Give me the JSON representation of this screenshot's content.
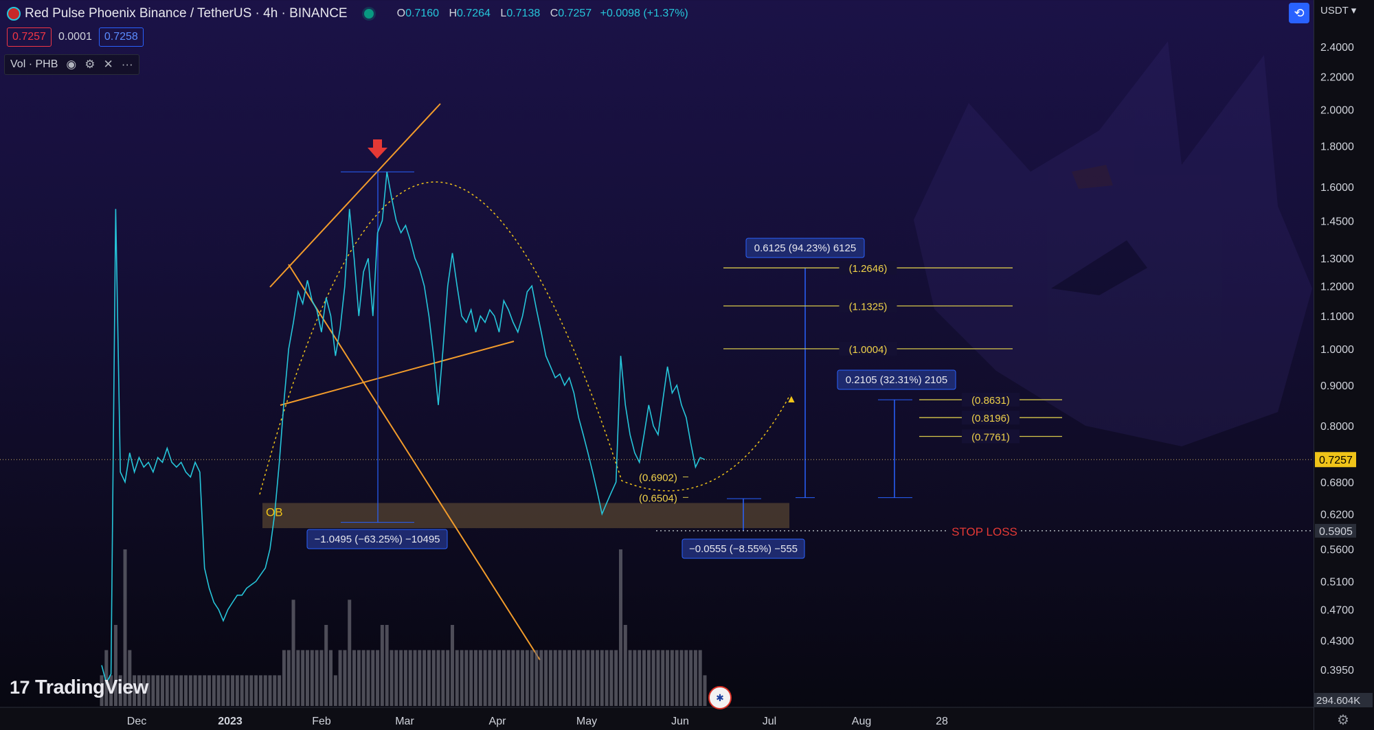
{
  "header": {
    "symbol_title": "Red Pulse Phoenix Binance / TetherUS · 4h · BINANCE",
    "open_label": "O",
    "open": "0.7160",
    "high_label": "H",
    "high": "0.7264",
    "low_label": "L",
    "low": "0.7138",
    "close_label": "C",
    "close": "0.7257",
    "change": "+0.0098 (+1.37%)"
  },
  "price_boxes": {
    "sell": "0.7257",
    "spread": "0.0001",
    "buy": "0.7258"
  },
  "indicator": {
    "label": "Vol · PHB"
  },
  "currency_selector": "USDT",
  "brand": "TradingView",
  "chart_data": {
    "type": "line",
    "series": [
      {
        "values": [
          0.4,
          0.38,
          0.39,
          1.5,
          0.7,
          0.68,
          0.74,
          0.7,
          0.73,
          0.71,
          0.72,
          0.7,
          0.73,
          0.72,
          0.75,
          0.72,
          0.71,
          0.72,
          0.7,
          0.69,
          0.72,
          0.7,
          0.53,
          0.5,
          0.48,
          0.47,
          0.455,
          0.47,
          0.48,
          0.49,
          0.49,
          0.5,
          0.505,
          0.51,
          0.52,
          0.53,
          0.56,
          0.62,
          0.72,
          0.86,
          1.0,
          1.08,
          1.18,
          1.14,
          1.22,
          1.15,
          1.12,
          1.05,
          1.16,
          1.1,
          0.98,
          1.06,
          1.2,
          1.5,
          1.3,
          1.1,
          1.25,
          1.3,
          1.1,
          1.4,
          1.45,
          1.67,
          1.55,
          1.45,
          1.4,
          1.43,
          1.37,
          1.3,
          1.26,
          1.2,
          1.1,
          0.98,
          0.85,
          1.0,
          1.2,
          1.32,
          1.2,
          1.1,
          1.08,
          1.12,
          1.05,
          1.1,
          1.08,
          1.12,
          1.1,
          1.05,
          1.15,
          1.12,
          1.08,
          1.05,
          1.1,
          1.18,
          1.2,
          1.12,
          1.05,
          0.98,
          0.95,
          0.92,
          0.93,
          0.9,
          0.92,
          0.88,
          0.82,
          0.78,
          0.74,
          0.7,
          0.66,
          0.62,
          0.64,
          0.66,
          0.68,
          0.98,
          0.85,
          0.78,
          0.74,
          0.72,
          0.78,
          0.85,
          0.8,
          0.78,
          0.86,
          0.95,
          0.88,
          0.9,
          0.85,
          0.82,
          0.76,
          0.71,
          0.73,
          0.7257
        ],
        "x_start": "Nov 14, 2022",
        "x_end": "Jun 9, 2023"
      }
    ],
    "volume": [
      1,
      2,
      1,
      3,
      1,
      6,
      2,
      1,
      1,
      1,
      1,
      1,
      1,
      1,
      1,
      1,
      1,
      1,
      1,
      1,
      1,
      1,
      1,
      1,
      1,
      1,
      1,
      1,
      1,
      1,
      1,
      1,
      1,
      1,
      1,
      1,
      1,
      1,
      1,
      2,
      2,
      4,
      2,
      2,
      2,
      2,
      2,
      2,
      3,
      2,
      1,
      2,
      2,
      4,
      2,
      2,
      2,
      2,
      2,
      2,
      3,
      3,
      2,
      2,
      2,
      2,
      2,
      2,
      2,
      2,
      2,
      2,
      2,
      2,
      2,
      3,
      2,
      2,
      2,
      2,
      2,
      2,
      2,
      2,
      2,
      2,
      2,
      2,
      2,
      2,
      2,
      2,
      2,
      2,
      2,
      2,
      2,
      2,
      2,
      2,
      2,
      2,
      2,
      2,
      2,
      2,
      2,
      2,
      2,
      2,
      2,
      6,
      3,
      2,
      2,
      2,
      2,
      2,
      2,
      2,
      2,
      2,
      2,
      2,
      2,
      2,
      2,
      2,
      2,
      1
    ],
    "volume_axis_label": "294.604K",
    "x_tick_labels": [
      "Dec",
      "2023",
      "Feb",
      "Mar",
      "Apr",
      "May",
      "Jun",
      "Jul",
      "Aug",
      "28"
    ],
    "y_axis": {
      "scale": "log",
      "tick_labels": [
        "2.4000",
        "2.2000",
        "2.0000",
        "1.8000",
        "1.6000",
        "1.4500",
        "1.3000",
        "1.2000",
        "1.1000",
        "1.0000",
        "0.9000",
        "0.8000",
        "0.6800",
        "0.6200",
        "0.5600",
        "0.5100",
        "0.4700",
        "0.4300",
        "0.3950"
      ]
    },
    "last_price_label": "0.7257",
    "stop_loss_price_label": "0.5905",
    "annotations": {
      "fib_levels_upper": [
        "(1.2646)",
        "(1.1325)",
        "(1.0004)"
      ],
      "fib_levels_mid": [
        "(0.8631)",
        "(0.8196)",
        "(0.7761)"
      ],
      "fib_levels_low": [
        "(0.6902)",
        "(0.6504)"
      ],
      "measure_drop": "−1.0495 (−63.25%) −10495",
      "measure_long_target": "0.6125 (94.23%) 6125",
      "measure_short_target": "0.2105 (32.31%) 2105",
      "measure_stop": "−0.0555 (−8.55%) −555",
      "order_block": "OB",
      "stop_loss": "STOP LOSS"
    }
  }
}
